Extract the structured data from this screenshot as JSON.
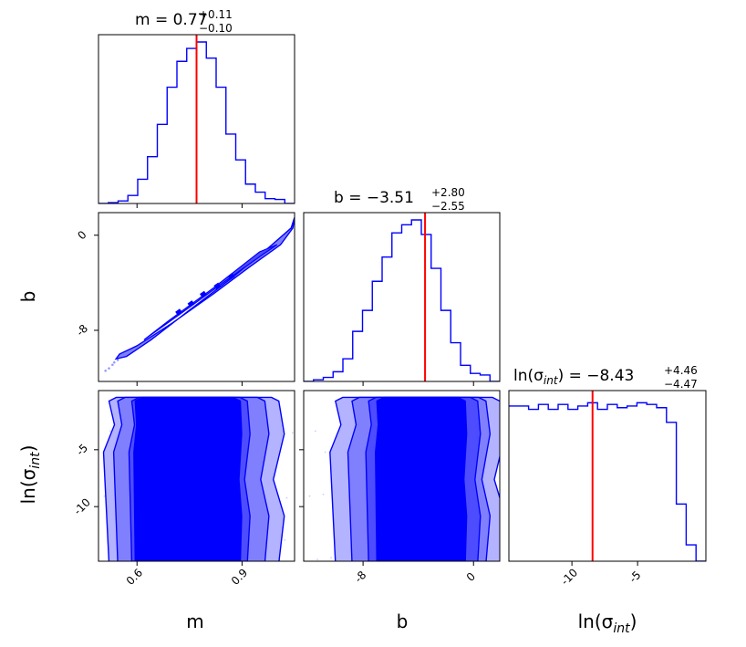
{
  "chart_data": {
    "type": "corner",
    "color": "#0000ff",
    "truth_color": "#ff0000",
    "parameters": [
      {
        "key": "m",
        "label_main": "m",
        "label_sub": "",
        "range": [
          0.49,
          1.05
        ],
        "ticks": [
          0.6,
          0.9
        ],
        "tick_labels": [
          "0.6",
          "0.9"
        ],
        "median": 0.77
      },
      {
        "key": "b",
        "label_main": "b",
        "label_sub": "",
        "range": [
          -12.3,
          1.9
        ],
        "ticks": [
          -8,
          0
        ],
        "tick_labels": [
          "-8",
          "0"
        ],
        "median": -3.51
      },
      {
        "key": "ln_sigma_int",
        "label_main": "ln(σ",
        "label_sub": "int",
        "label_close": ")",
        "range": [
          -14.8,
          0.2
        ],
        "ticks": [
          -10,
          -5
        ],
        "tick_labels": [
          "-10",
          "-5"
        ],
        "median": -8.43
      }
    ],
    "titles": [
      {
        "prefix": "m = 0.77",
        "plus": "+0.11",
        "minus": "−0.10"
      },
      {
        "prefix": "b = −3.51",
        "plus": "+2.80",
        "minus": "−2.55"
      },
      {
        "prefix_main": "ln(σ",
        "prefix_sub": "int",
        "prefix_rest": ") = −8.43",
        "plus": "+4.46",
        "minus": "−4.47"
      }
    ],
    "histograms": {
      "m": {
        "bin_edges": [
          0.49,
          0.518,
          0.546,
          0.574,
          0.602,
          0.63,
          0.658,
          0.686,
          0.714,
          0.742,
          0.77,
          0.798,
          0.826,
          0.854,
          0.882,
          0.91,
          0.938,
          0.966,
          0.994,
          1.022,
          1.05
        ],
        "counts": [
          0.0,
          0.005,
          0.016,
          0.05,
          0.15,
          0.29,
          0.49,
          0.72,
          0.88,
          0.96,
          1.0,
          0.9,
          0.72,
          0.43,
          0.27,
          0.12,
          0.07,
          0.03,
          0.025,
          0.0
        ]
      },
      "b": {
        "bin_edges": [
          -12.3,
          -11.59,
          -10.88,
          -10.17,
          -9.46,
          -8.75,
          -8.04,
          -7.33,
          -6.62,
          -5.91,
          -5.2,
          -4.49,
          -3.78,
          -3.07,
          -2.36,
          -1.65,
          -0.94,
          -0.23,
          0.48,
          1.19,
          1.9
        ],
        "counts": [
          0.0,
          0.01,
          0.025,
          0.06,
          0.14,
          0.31,
          0.44,
          0.62,
          0.77,
          0.92,
          0.97,
          1.0,
          0.91,
          0.7,
          0.44,
          0.24,
          0.1,
          0.05,
          0.04,
          0.0
        ]
      },
      "ln_sigma_int": {
        "bin_edges": [
          -14.8,
          -14.05,
          -13.3,
          -12.55,
          -11.8,
          -11.05,
          -10.3,
          -9.55,
          -8.8,
          -8.05,
          -7.3,
          -6.55,
          -5.8,
          -5.05,
          -4.3,
          -3.55,
          -2.8,
          -2.05,
          -1.3,
          -0.55,
          0.2
        ],
        "counts": [
          0.95,
          0.95,
          0.93,
          0.96,
          0.93,
          0.96,
          0.93,
          0.95,
          0.97,
          0.93,
          0.96,
          0.94,
          0.95,
          0.97,
          0.96,
          0.94,
          0.85,
          0.35,
          0.1,
          0.0
        ]
      }
    },
    "contours_2d": {
      "b_vs_m": {
        "outer_x": [
          0.55,
          0.6,
          0.7,
          0.82,
          0.92,
          1.01,
          1.045,
          1.05,
          1.04,
          0.97,
          0.87,
          0.75,
          0.64,
          0.57,
          0.54,
          0.55
        ],
        "outer_y": [
          -10.0,
          -9.3,
          -7.4,
          -4.9,
          -2.7,
          -0.8,
          0.6,
          1.5,
          0.6,
          -1.2,
          -3.6,
          -6.3,
          -8.8,
          -10.2,
          -10.4,
          -10.0
        ],
        "inner_x": [
          0.62,
          0.72,
          0.86,
          0.96,
          1.0,
          0.95,
          0.82,
          0.69,
          0.62
        ],
        "inner_y": [
          -8.8,
          -6.7,
          -3.7,
          -1.6,
          -0.8,
          -1.4,
          -4.4,
          -7.2,
          -8.8
        ],
        "core_points": [
          [
            0.72,
            -6.5
          ],
          [
            0.755,
            -5.8
          ],
          [
            0.79,
            -5.0
          ],
          [
            0.83,
            -4.3
          ],
          [
            0.87,
            -3.5
          ]
        ],
        "scatter_tail": [
          [
            0.52,
            -11.2
          ],
          [
            0.53,
            -10.9
          ],
          [
            0.535,
            -10.7
          ],
          [
            0.545,
            -10.5
          ],
          [
            0.51,
            -11.4
          ]
        ]
      },
      "lnsig_vs_m": {
        "band_x": [
          [
            0.595,
            0.895
          ],
          [
            0.585,
            0.915
          ],
          [
            0.545,
            0.965
          ],
          [
            0.52,
            1.005
          ]
        ],
        "y_top": -0.4,
        "y_bottom": -14.8
      },
      "lnsig_vs_b": {
        "band_x": [
          [
            -7.0,
            -0.6
          ],
          [
            -7.6,
            0.3
          ],
          [
            -8.8,
            0.9
          ],
          [
            -10.0,
            1.9
          ]
        ],
        "y_top": -0.4,
        "y_bottom": -14.8
      }
    }
  }
}
